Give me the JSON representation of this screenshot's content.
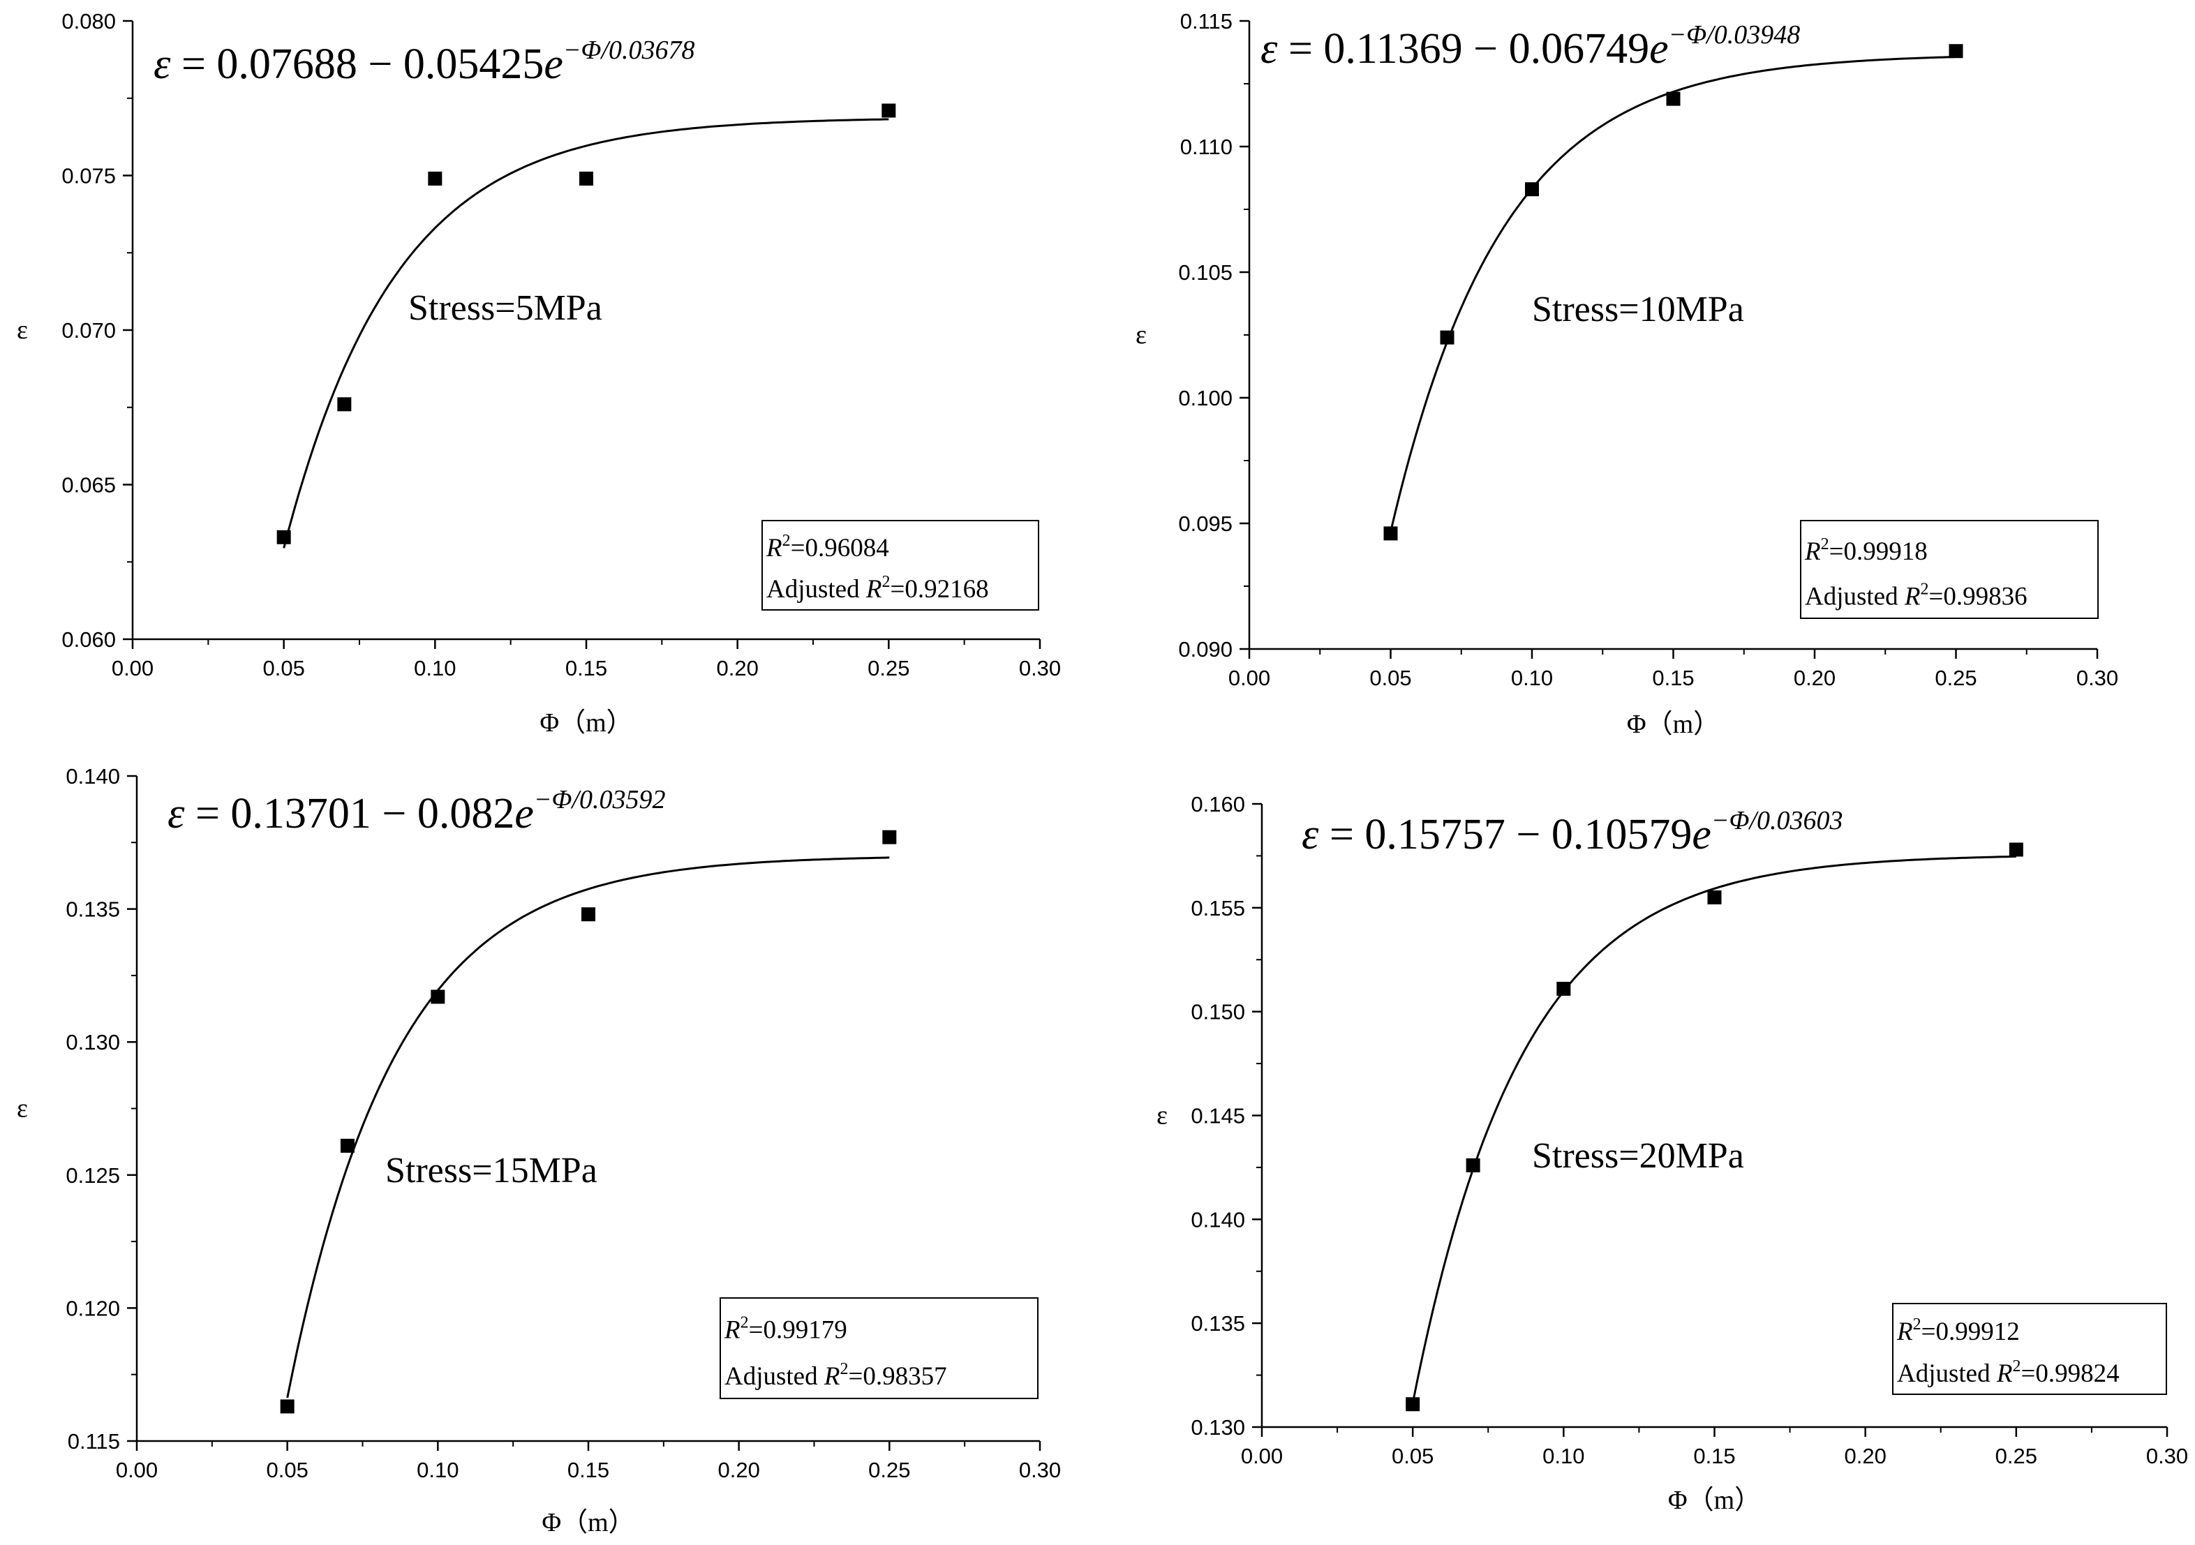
{
  "chart_data": [
    {
      "type": "scatter",
      "xlabel": "Φ（m）",
      "ylabel": "ε",
      "xlim": [
        0.0,
        0.3
      ],
      "ylim": [
        0.06,
        0.08
      ],
      "xticks": [
        "0.00",
        "0.05",
        "0.10",
        "0.15",
        "0.20",
        "0.25",
        "0.30"
      ],
      "yticks": [
        "0.060",
        "0.065",
        "0.070",
        "0.075",
        "0.080"
      ],
      "equation": {
        "lhs": "ε",
        "eq": " = ",
        "a": "0.07688",
        "minus": " − ",
        "b": "0.05425",
        "base": "e",
        "exponent": "−Φ/0.03678"
      },
      "fit": {
        "a": 0.07688,
        "b": 0.05425,
        "t": 0.03678
      },
      "stress_label": "Stress=5MPa",
      "stats": {
        "r2_prefix": "R",
        "r2_sup": "2",
        "r2_value": "=0.96084",
        "adj_prefix": "Adjusted ",
        "adj_r": "R",
        "adj_sup": "2",
        "adj_value": "=0.92168"
      },
      "points": {
        "x": [
          0.05,
          0.07,
          0.1,
          0.15,
          0.25
        ],
        "y": [
          0.0633,
          0.0676,
          0.0749,
          0.0749,
          0.0771
        ]
      }
    },
    {
      "type": "scatter",
      "xlabel": "Φ（m）",
      "ylabel": "ε",
      "xlim": [
        0.0,
        0.3
      ],
      "ylim": [
        0.09,
        0.115
      ],
      "xticks": [
        "0.00",
        "0.05",
        "0.10",
        "0.15",
        "0.20",
        "0.25",
        "0.30"
      ],
      "yticks": [
        "0.090",
        "0.095",
        "0.100",
        "0.105",
        "0.110",
        "0.115"
      ],
      "equation": {
        "lhs": "ε",
        "eq": " = ",
        "a": "0.11369",
        "minus": " − ",
        "b": "0.06749",
        "base": "e",
        "exponent": "−Φ/0.03948"
      },
      "fit": {
        "a": 0.11369,
        "b": 0.06749,
        "t": 0.03948
      },
      "stress_label": "Stress=10MPa",
      "stats": {
        "r2_prefix": "R",
        "r2_sup": "2",
        "r2_value": "=0.99918",
        "adj_prefix": "Adjusted ",
        "adj_r": "R",
        "adj_sup": "2",
        "adj_value": "=0.99836"
      },
      "points": {
        "x": [
          0.05,
          0.07,
          0.1,
          0.15,
          0.25
        ],
        "y": [
          0.0946,
          0.1024,
          0.1083,
          0.1119,
          0.1138
        ]
      }
    },
    {
      "type": "scatter",
      "xlabel": "Φ（m）",
      "ylabel": "ε",
      "xlim": [
        0.0,
        0.3
      ],
      "ylim": [
        0.115,
        0.14
      ],
      "xticks": [
        "0.00",
        "0.05",
        "0.10",
        "0.15",
        "0.20",
        "0.25",
        "0.30"
      ],
      "yticks": [
        "0.115",
        "0.120",
        "0.125",
        "0.130",
        "0.135",
        "0.140"
      ],
      "equation": {
        "lhs": "ε",
        "eq": " = ",
        "a": "0.13701",
        "minus": " − ",
        "b": "0.082",
        "base": "e",
        "exponent": "−Φ/0.03592"
      },
      "fit": {
        "a": 0.13701,
        "b": 0.082,
        "t": 0.03592
      },
      "stress_label": "Stress=15MPa",
      "stats": {
        "r2_prefix": "R",
        "r2_sup": "2",
        "r2_value": "=0.99179",
        "adj_prefix": "Adjusted ",
        "adj_r": "R",
        "adj_sup": "2",
        "adj_value": "=0.98357"
      },
      "points": {
        "x": [
          0.05,
          0.07,
          0.1,
          0.15,
          0.25
        ],
        "y": [
          0.1163,
          0.1261,
          0.1317,
          0.1348,
          0.1377
        ]
      }
    },
    {
      "type": "scatter",
      "xlabel": "Φ（m）",
      "ylabel": "ε",
      "xlim": [
        0.0,
        0.3
      ],
      "ylim": [
        0.13,
        0.16
      ],
      "xticks": [
        "0.00",
        "0.05",
        "0.10",
        "0.15",
        "0.20",
        "0.25",
        "0.30"
      ],
      "yticks": [
        "0.130",
        "0.135",
        "0.140",
        "0.145",
        "0.150",
        "0.155",
        "0.160"
      ],
      "equation": {
        "lhs": "ε",
        "eq": " = ",
        "a": "0.15757",
        "minus": " − ",
        "b": "0.10579",
        "base": "e",
        "exponent": "−Φ/0.03603"
      },
      "fit": {
        "a": 0.15757,
        "b": 0.10579,
        "t": 0.03603
      },
      "stress_label": "Stress=20MPa",
      "stats": {
        "r2_prefix": "R",
        "r2_sup": "2",
        "r2_value": "=0.99912",
        "adj_prefix": "Adjusted ",
        "adj_r": "R",
        "adj_sup": "2",
        "adj_value": "=0.99824"
      },
      "points": {
        "x": [
          0.05,
          0.07,
          0.1,
          0.15,
          0.25
        ],
        "y": [
          0.1311,
          0.1426,
          0.1511,
          0.1555,
          0.1578
        ]
      }
    }
  ]
}
